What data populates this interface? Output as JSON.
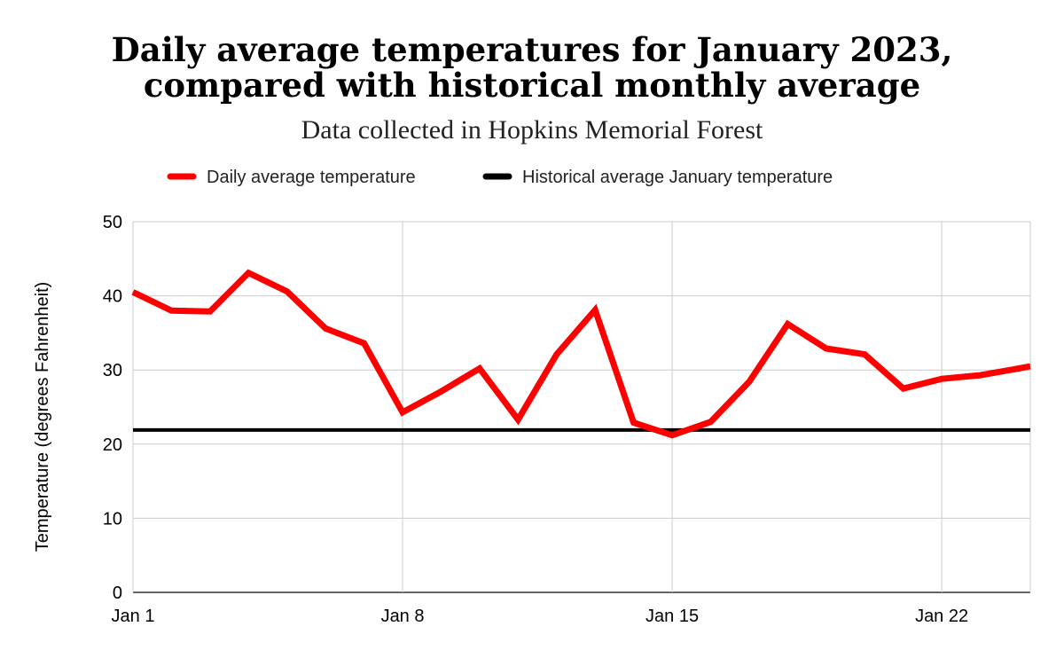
{
  "chart_data": {
    "type": "line",
    "title_line1": "Daily average temperatures for January 2023,",
    "title_line2": "compared with historical monthly average",
    "subtitle": "Data collected in Hopkins Memorial Forest",
    "xlabel": "",
    "ylabel": "Temperature (degrees Fahrenheit)",
    "ylim": [
      0,
      50
    ],
    "yticks": [
      0,
      10,
      20,
      30,
      40,
      50
    ],
    "xlim": [
      1,
      24.3
    ],
    "xticks": [
      {
        "x": 1,
        "label": "Jan 1"
      },
      {
        "x": 8,
        "label": "Jan 8"
      },
      {
        "x": 15,
        "label": "Jan 15"
      },
      {
        "x": 22,
        "label": "Jan 22"
      }
    ],
    "grid": true,
    "legend_position": "top",
    "series": [
      {
        "name": "Daily average temperature",
        "color": "#ff0000",
        "x": [
          1,
          2,
          3,
          4,
          5,
          6,
          7,
          8,
          9,
          10,
          11,
          12,
          13,
          14,
          15,
          16,
          17,
          18,
          19,
          20,
          21,
          22,
          23,
          24,
          24.3
        ],
        "values": [
          40.5,
          38.0,
          37.9,
          43.1,
          40.6,
          35.6,
          33.6,
          24.3,
          27.1,
          30.2,
          23.3,
          32.1,
          38.1,
          22.9,
          21.2,
          23.0,
          28.4,
          36.2,
          32.9,
          32.1,
          27.5,
          28.8,
          29.3,
          30.2,
          30.5
        ]
      },
      {
        "name": "Historical average January temperature",
        "color": "#000000",
        "x": [
          1,
          24.3
        ],
        "values": [
          21.9,
          21.9
        ]
      }
    ]
  }
}
